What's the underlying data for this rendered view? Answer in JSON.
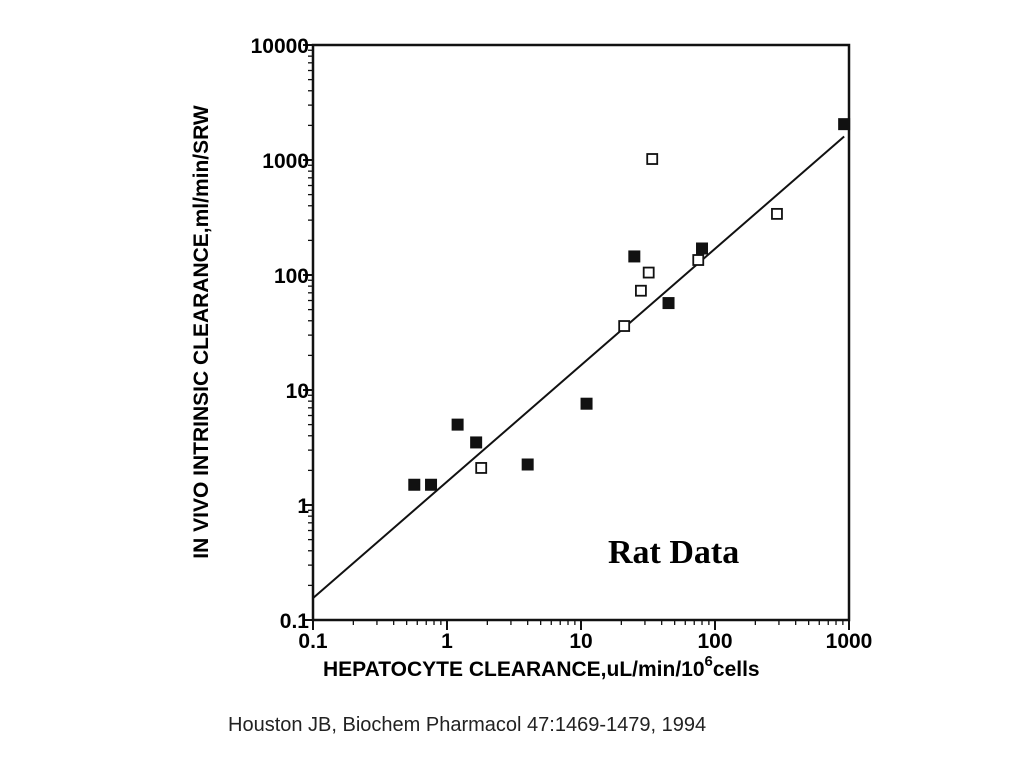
{
  "chart_data": {
    "type": "scatter",
    "title": "",
    "xlabel": "HEPATOCYTE CLEARANCE,uL/min/10",
    "xlabel_superscript": "6",
    "xlabel_suffix": "cells",
    "ylabel": "IN VIVO INTRINSIC CLEARANCE,ml/min/SRW",
    "xscale": "log",
    "yscale": "log",
    "xlim": [
      0.1,
      1000
    ],
    "ylim": [
      0.1,
      10000
    ],
    "x_ticks": [
      "0.1",
      "1",
      "10",
      "100",
      "1000"
    ],
    "y_ticks": [
      "0.1",
      "1",
      "10",
      "100",
      "1000",
      "10000"
    ],
    "grid": false,
    "annotation": "Rat Data",
    "series": [
      {
        "marker": "filled-square",
        "points": [
          {
            "x": 0.57,
            "y": 1.5
          },
          {
            "x": 0.76,
            "y": 1.5
          },
          {
            "x": 1.2,
            "y": 5.0
          },
          {
            "x": 1.65,
            "y": 3.5
          },
          {
            "x": 4.0,
            "y": 2.25
          },
          {
            "x": 11.0,
            "y": 7.6
          },
          {
            "x": 25.0,
            "y": 145
          },
          {
            "x": 45.0,
            "y": 57
          },
          {
            "x": 80.0,
            "y": 170
          },
          {
            "x": 920.0,
            "y": 2050
          }
        ]
      },
      {
        "marker": "open-square",
        "points": [
          {
            "x": 1.8,
            "y": 2.1
          },
          {
            "x": 21.0,
            "y": 36
          },
          {
            "x": 28.0,
            "y": 73
          },
          {
            "x": 32.0,
            "y": 105
          },
          {
            "x": 34.0,
            "y": 1020
          },
          {
            "x": 75.0,
            "y": 135
          },
          {
            "x": 290.0,
            "y": 340
          }
        ]
      }
    ],
    "regression_line": {
      "from": {
        "x": 0.1,
        "y": 0.155
      },
      "to": {
        "x": 920,
        "y": 1600
      }
    }
  },
  "citation": "Houston JB, Biochem Pharmacol 47:1469-1479, 1994",
  "colors": {
    "ink": "#111111",
    "background": "#ffffff"
  }
}
